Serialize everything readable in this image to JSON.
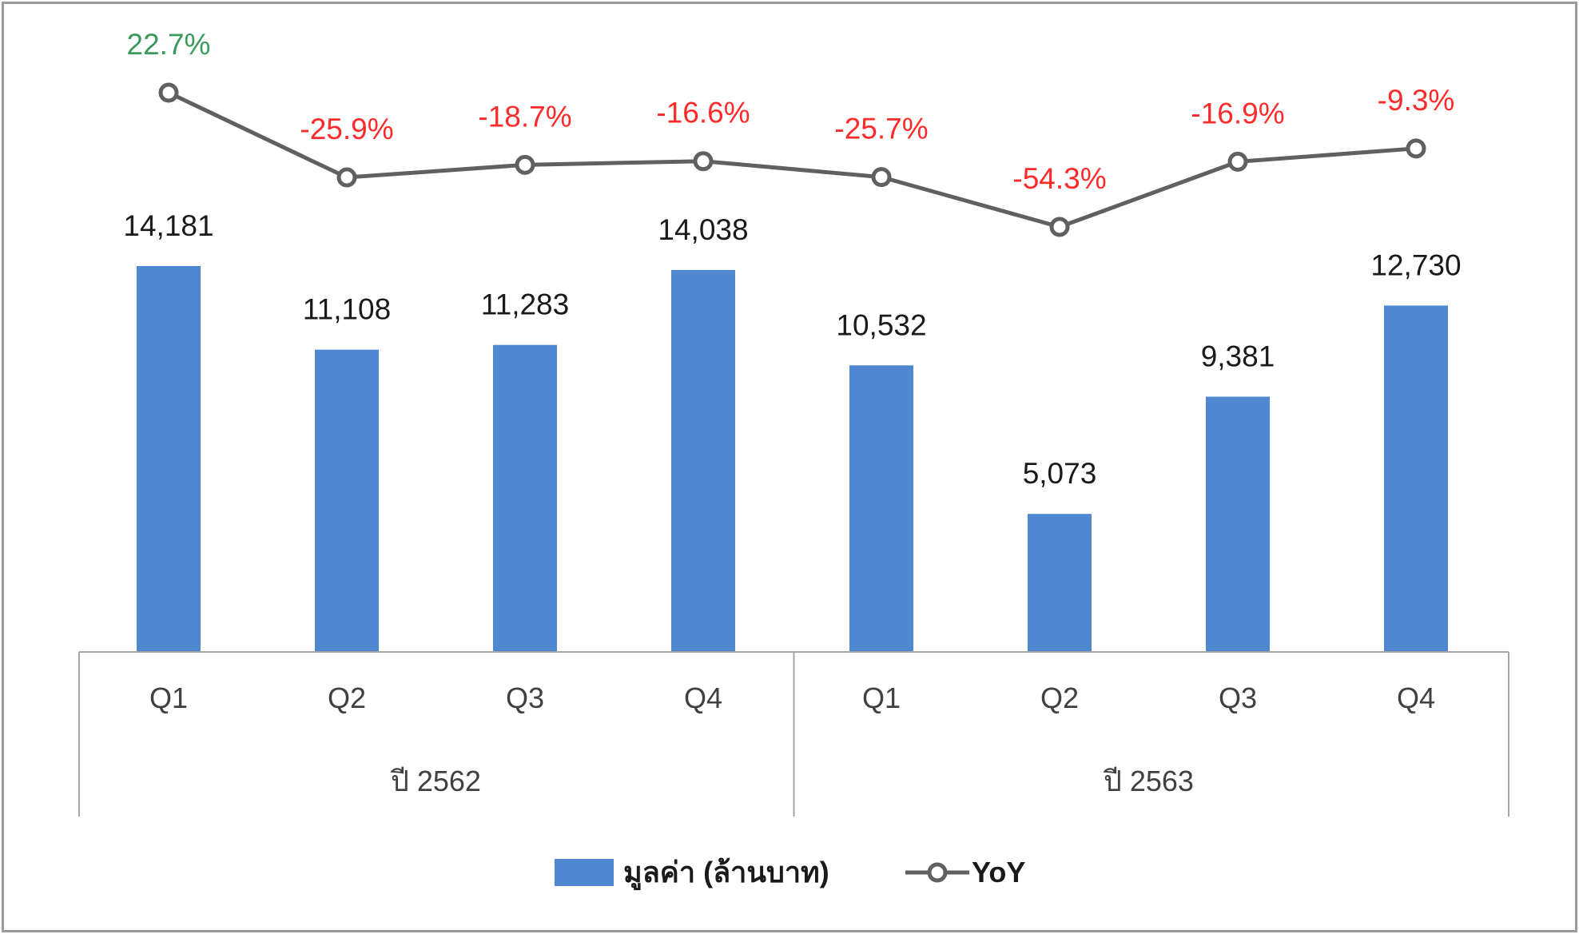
{
  "chart_data": {
    "type": "bar",
    "categories": [
      "Q1",
      "Q2",
      "Q3",
      "Q4",
      "Q1",
      "Q2",
      "Q3",
      "Q4"
    ],
    "groups": [
      {
        "label": "ปี 2562",
        "count": 4
      },
      {
        "label": "ปี 2563",
        "count": 4
      }
    ],
    "series": [
      {
        "name": "มูลค่า (ล้านบาท)",
        "type": "bar",
        "color": "#4f88d1",
        "values": [
          14181,
          11108,
          11283,
          14038,
          10532,
          5073,
          9381,
          12730
        ],
        "labels": [
          "14,181",
          "11,108",
          "11,283",
          "14,038",
          "10,532",
          "5,073",
          "9,381",
          "12,730"
        ]
      },
      {
        "name": "YoY",
        "type": "line",
        "color": "#606060",
        "values": [
          22.7,
          -25.9,
          -18.7,
          -16.6,
          -25.7,
          -54.3,
          -16.9,
          -9.3
        ],
        "labels": [
          "22.7%",
          "-25.9%",
          "-18.7%",
          "-16.6%",
          "-25.7%",
          "-54.3%",
          "-16.9%",
          "-9.3%"
        ],
        "label_colors": [
          "#3a9a5b",
          "#ff2a2a",
          "#ff2a2a",
          "#ff2a2a",
          "#ff2a2a",
          "#ff2a2a",
          "#ff2a2a",
          "#ff2a2a"
        ]
      }
    ],
    "legend_position": "bottom",
    "grid": false
  }
}
